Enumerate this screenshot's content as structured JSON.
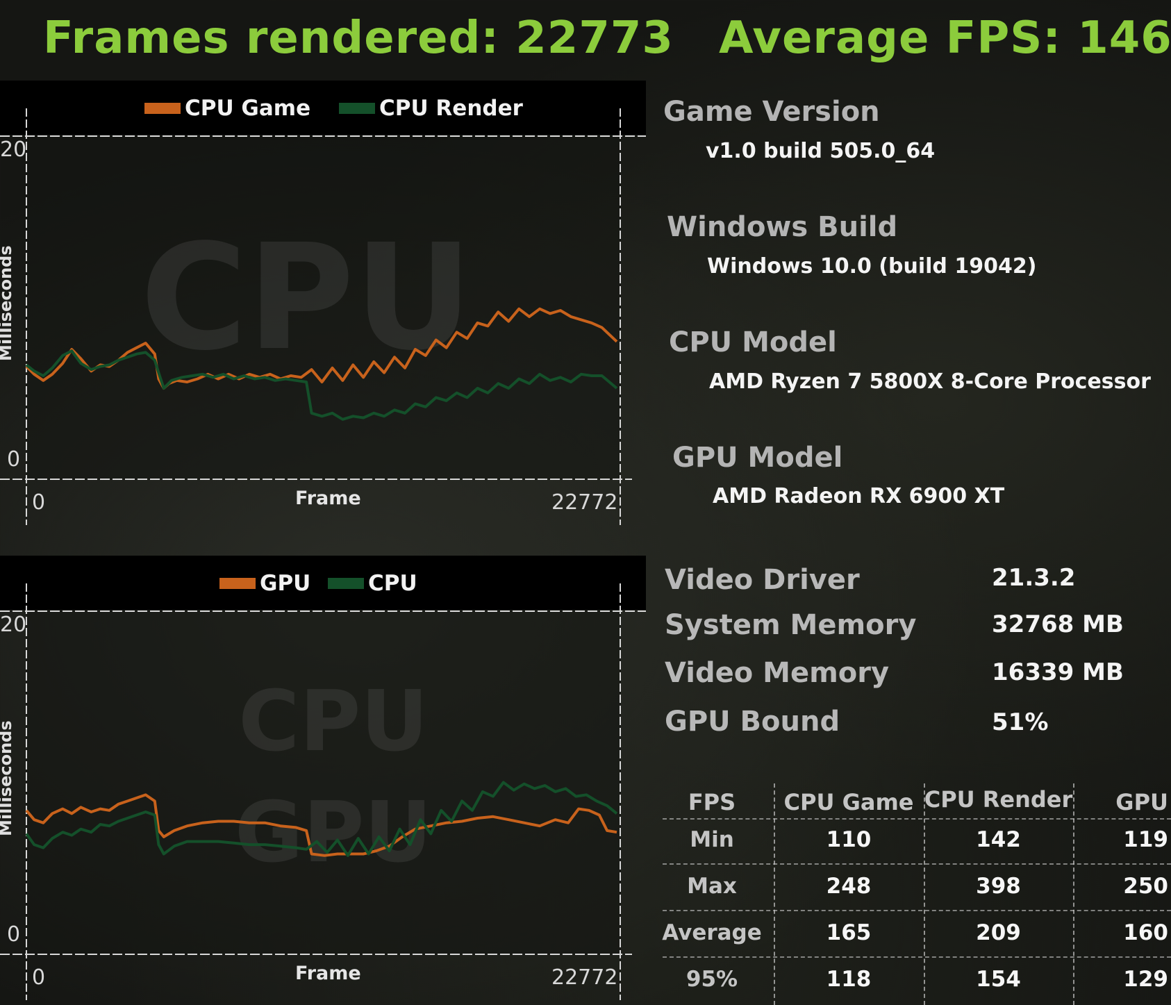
{
  "header": {
    "frames_rendered": "Frames rendered: 22773",
    "average_fps": "Average FPS: 146"
  },
  "colors": {
    "accent": "#8ccc3c",
    "series_orange": "#c8621c",
    "series_green": "#14502a"
  },
  "chart_data": [
    {
      "type": "line",
      "title": "",
      "watermark": "CPU",
      "xlabel": "Frame",
      "ylabel": "Milliseconds",
      "xlim": [
        0,
        22772
      ],
      "ylim": [
        0,
        20
      ],
      "x_tick_labels": [
        "0",
        "22772"
      ],
      "y_tick_labels": [
        "0",
        "20"
      ],
      "legend": "top",
      "series": [
        {
          "name": "CPU Game",
          "color": "#c8621c",
          "x": [
            0,
            300,
            650,
            1000,
            1400,
            1750,
            2100,
            2500,
            2850,
            3200,
            3550,
            3900,
            4250,
            4600,
            4950,
            5100,
            5300,
            5500,
            5800,
            6200,
            6600,
            7000,
            7400,
            7800,
            8200,
            8600,
            9000,
            9400,
            9800,
            10200,
            10600,
            11000,
            11400,
            11800,
            12200,
            12600,
            13000,
            13400,
            13800,
            14200,
            14600,
            15000,
            15400,
            15800,
            16200,
            16600,
            17000,
            17400,
            17800,
            18200,
            18600,
            19000,
            19400,
            19800,
            20200,
            20600,
            21000,
            21400,
            21800,
            22200,
            22772
          ],
          "y": [
            6.0,
            5.5,
            5.1,
            5.5,
            6.2,
            7.1,
            6.5,
            5.7,
            6.1,
            6.0,
            6.4,
            6.9,
            7.2,
            7.5,
            6.8,
            5.2,
            4.6,
            4.9,
            5.1,
            5.0,
            5.2,
            5.5,
            5.2,
            5.5,
            5.2,
            5.5,
            5.3,
            5.5,
            5.2,
            5.4,
            5.3,
            5.8,
            5.0,
            5.9,
            5.1,
            6.1,
            5.3,
            6.3,
            5.6,
            6.6,
            5.9,
            7.1,
            6.7,
            7.7,
            7.2,
            8.2,
            7.8,
            8.8,
            8.6,
            9.5,
            8.9,
            9.7,
            9.2,
            9.7,
            9.4,
            9.6,
            9.2,
            9.0,
            8.8,
            8.5,
            7.6
          ]
        },
        {
          "name": "CPU Render",
          "color": "#14502a",
          "x": [
            0,
            300,
            650,
            1000,
            1400,
            1750,
            2100,
            2500,
            2850,
            3200,
            3550,
            3900,
            4250,
            4600,
            4950,
            5100,
            5300,
            5600,
            6000,
            6400,
            6800,
            7200,
            7600,
            8000,
            8400,
            8800,
            9200,
            9600,
            10000,
            10400,
            10800,
            11000,
            11400,
            11800,
            12200,
            12600,
            13000,
            13400,
            13800,
            14200,
            14600,
            15000,
            15400,
            15800,
            16200,
            16600,
            17000,
            17400,
            17800,
            18200,
            18600,
            19000,
            19400,
            19800,
            20200,
            20600,
            21000,
            21400,
            21800,
            22200,
            22772
          ],
          "y": [
            6.1,
            5.7,
            5.4,
            5.9,
            6.7,
            7.0,
            6.2,
            5.8,
            6.0,
            6.1,
            6.4,
            6.6,
            6.8,
            6.9,
            6.4,
            5.6,
            4.6,
            5.1,
            5.3,
            5.4,
            5.5,
            5.3,
            5.5,
            5.2,
            5.4,
            5.2,
            5.3,
            5.1,
            5.2,
            5.1,
            5.0,
            3.0,
            2.8,
            3.0,
            2.6,
            2.8,
            2.7,
            3.0,
            2.8,
            3.2,
            3.0,
            3.6,
            3.4,
            4.0,
            3.8,
            4.3,
            4.0,
            4.6,
            4.3,
            4.9,
            4.6,
            5.2,
            4.9,
            5.5,
            5.1,
            5.3,
            5.0,
            5.5,
            5.4,
            5.4,
            4.6
          ]
        }
      ]
    },
    {
      "type": "line",
      "title": "",
      "watermark": "CPU GPU",
      "xlabel": "Frame",
      "ylabel": "Milliseconds",
      "xlim": [
        0,
        22772
      ],
      "ylim": [
        0,
        20
      ],
      "x_tick_labels": [
        "0",
        "22772"
      ],
      "y_tick_labels": [
        "0",
        "20"
      ],
      "legend": "top",
      "series": [
        {
          "name": "GPU",
          "color": "#c8621c",
          "x": [
            0,
            300,
            650,
            1000,
            1400,
            1750,
            2100,
            2500,
            2850,
            3200,
            3550,
            3900,
            4250,
            4600,
            4950,
            5100,
            5300,
            5700,
            6200,
            6800,
            7400,
            8000,
            8600,
            9200,
            9800,
            10400,
            10800,
            11000,
            11500,
            12000,
            12500,
            13000,
            13500,
            14000,
            14500,
            15000,
            15600,
            16200,
            16800,
            17400,
            18000,
            18600,
            19200,
            19800,
            20400,
            20900,
            21300,
            21700,
            22100,
            22400,
            22772
          ],
          "y": [
            8.0,
            7.4,
            7.2,
            7.8,
            8.1,
            7.8,
            8.2,
            7.9,
            8.1,
            8.0,
            8.4,
            8.6,
            8.8,
            9.0,
            8.6,
            6.7,
            6.3,
            6.7,
            7.0,
            7.2,
            7.3,
            7.3,
            7.2,
            7.2,
            7.0,
            6.9,
            6.7,
            5.2,
            5.1,
            5.2,
            5.2,
            5.2,
            5.4,
            5.7,
            6.3,
            6.8,
            7.0,
            7.2,
            7.3,
            7.5,
            7.6,
            7.4,
            7.2,
            7.0,
            7.4,
            7.2,
            8.1,
            8.0,
            7.7,
            6.7,
            6.6
          ]
        },
        {
          "name": "CPU",
          "color": "#14502a",
          "x": [
            0,
            300,
            650,
            1000,
            1400,
            1750,
            2100,
            2500,
            2850,
            3200,
            3550,
            3900,
            4250,
            4600,
            4950,
            5100,
            5300,
            5700,
            6200,
            6800,
            7400,
            8000,
            8600,
            9200,
            9800,
            10400,
            10800,
            11200,
            11600,
            12000,
            12400,
            12800,
            13200,
            13600,
            14000,
            14400,
            14800,
            15200,
            15600,
            16000,
            16400,
            16800,
            17200,
            17600,
            18000,
            18400,
            18800,
            19200,
            19600,
            20000,
            20400,
            20800,
            21200,
            21600,
            22000,
            22400,
            22772
          ],
          "y": [
            6.5,
            5.8,
            5.6,
            6.2,
            6.6,
            6.4,
            6.8,
            6.6,
            7.1,
            7.0,
            7.3,
            7.5,
            7.7,
            7.9,
            7.7,
            5.8,
            5.2,
            5.7,
            6.0,
            6.0,
            6.0,
            5.9,
            5.8,
            5.8,
            5.7,
            5.6,
            5.5,
            6.0,
            5.3,
            6.1,
            5.1,
            6.2,
            5.2,
            6.3,
            5.4,
            6.8,
            5.8,
            7.4,
            6.5,
            8.0,
            7.3,
            8.6,
            8.0,
            9.2,
            8.9,
            9.8,
            9.3,
            9.7,
            9.4,
            9.6,
            9.2,
            9.4,
            8.9,
            9.0,
            8.6,
            8.3,
            7.8
          ]
        }
      ]
    }
  ],
  "info": {
    "game_version_label": "Game Version",
    "game_version_value": "v1.0 build 505.0_64",
    "windows_build_label": "Windows Build",
    "windows_build_value": "Windows 10.0 (build 19042)",
    "cpu_model_label": "CPU Model",
    "cpu_model_value": "AMD Ryzen 7 5800X 8-Core Processor",
    "gpu_model_label": "GPU Model",
    "gpu_model_value": "AMD Radeon RX 6900 XT",
    "video_driver_label": "Video Driver",
    "video_driver_value": "21.3.2",
    "system_memory_label": "System Memory",
    "system_memory_value": "32768 MB",
    "video_memory_label": "Video Memory",
    "video_memory_value": "16339 MB",
    "gpu_bound_label": "GPU Bound",
    "gpu_bound_value": "51%"
  },
  "stats_table": {
    "headers": [
      "FPS",
      "CPU Game",
      "CPU Render",
      "GPU"
    ],
    "rows": [
      {
        "label": "Min",
        "values": [
          "110",
          "142",
          "119"
        ]
      },
      {
        "label": "Max",
        "values": [
          "248",
          "398",
          "250"
        ]
      },
      {
        "label": "Average",
        "values": [
          "165",
          "209",
          "160"
        ]
      },
      {
        "label": "95%",
        "values": [
          "118",
          "154",
          "129"
        ]
      }
    ]
  }
}
